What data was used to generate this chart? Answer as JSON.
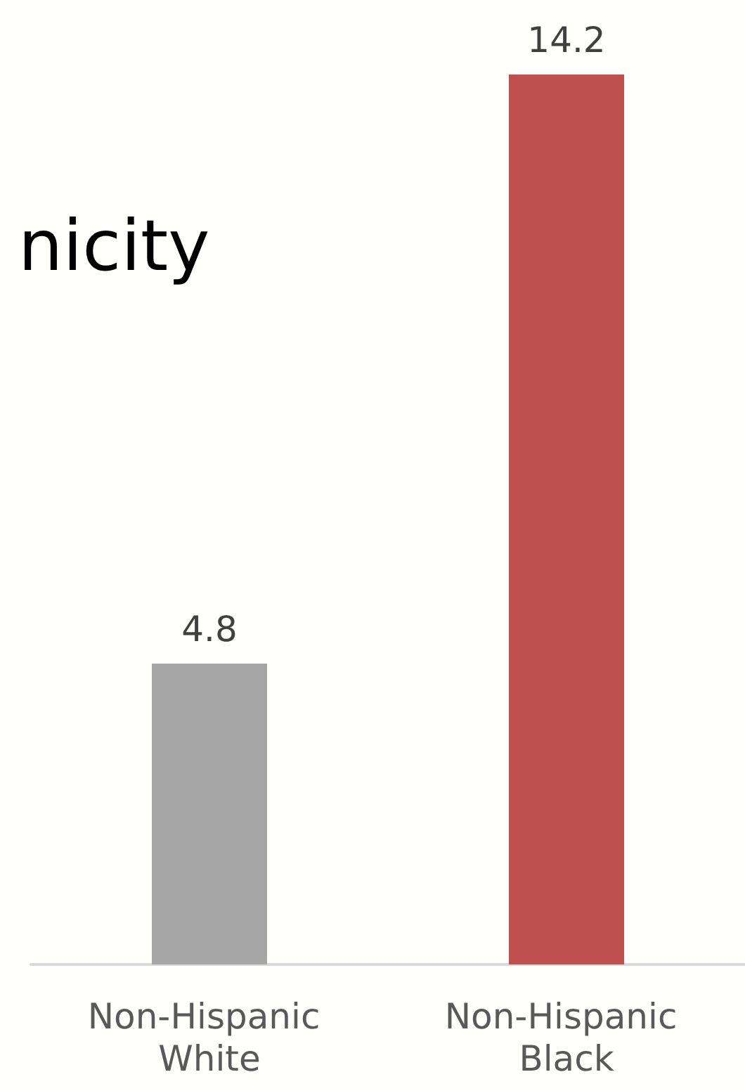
{
  "chart_data": {
    "type": "bar",
    "title": "nicity",
    "categories": [
      "Non-Hispanic White",
      "Non-Hispanic Black"
    ],
    "values": [
      4.8,
      14.2
    ],
    "colors": [
      "#a5a5a5",
      "#c0504d"
    ],
    "data_labels": true
  }
}
